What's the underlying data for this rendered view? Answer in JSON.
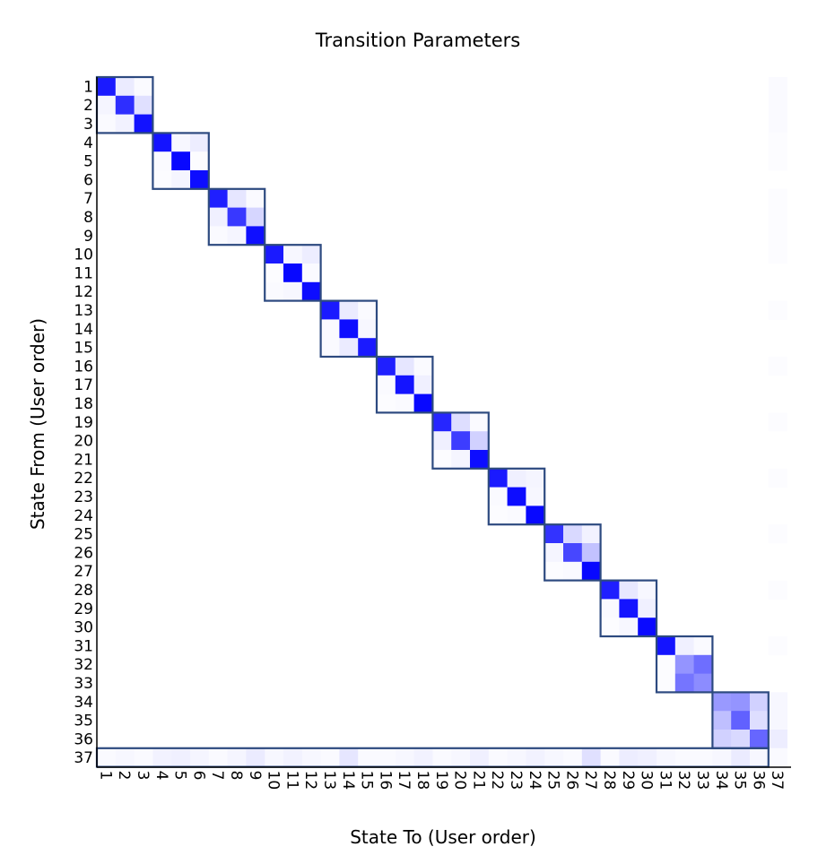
{
  "chart_data": {
    "type": "heatmap",
    "title": "Transition Parameters",
    "xlabel": "State To (User order)",
    "ylabel": "State From (User order)",
    "x_ticks": [
      "1",
      "2",
      "3",
      "4",
      "5",
      "6",
      "7",
      "8",
      "9",
      "10",
      "11",
      "12",
      "13",
      "14",
      "15",
      "16",
      "17",
      "18",
      "19",
      "20",
      "21",
      "22",
      "23",
      "24",
      "25",
      "26",
      "27",
      "28",
      "29",
      "30",
      "31",
      "32",
      "33",
      "34",
      "35",
      "36",
      "37"
    ],
    "y_ticks": [
      "1",
      "2",
      "3",
      "4",
      "5",
      "6",
      "7",
      "8",
      "9",
      "10",
      "11",
      "12",
      "13",
      "14",
      "15",
      "16",
      "17",
      "18",
      "19",
      "20",
      "21",
      "22",
      "23",
      "24",
      "25",
      "26",
      "27",
      "28",
      "29",
      "30",
      "31",
      "32",
      "33",
      "34",
      "35",
      "36",
      "37"
    ],
    "color_scale": {
      "low": "#ffffff",
      "high": "#0000ff"
    },
    "value_range": [
      0,
      1
    ],
    "blocks": [
      [
        1,
        3
      ],
      [
        4,
        6
      ],
      [
        7,
        9
      ],
      [
        10,
        12
      ],
      [
        13,
        15
      ],
      [
        16,
        18
      ],
      [
        19,
        21
      ],
      [
        22,
        24
      ],
      [
        25,
        27
      ],
      [
        28,
        30
      ],
      [
        31,
        33
      ],
      [
        34,
        36
      ],
      [
        1,
        36
      ]
    ],
    "block_outline_color": "#2d4a80",
    "cells": [
      [
        1,
        1,
        0.9
      ],
      [
        1,
        2,
        0.08
      ],
      [
        1,
        3,
        0.02
      ],
      [
        2,
        1,
        0.04
      ],
      [
        2,
        2,
        0.82
      ],
      [
        2,
        3,
        0.12
      ],
      [
        3,
        1,
        0.02
      ],
      [
        3,
        2,
        0.05
      ],
      [
        3,
        3,
        0.93
      ],
      [
        4,
        4,
        0.92
      ],
      [
        4,
        5,
        0.03
      ],
      [
        4,
        6,
        0.07
      ],
      [
        5,
        4,
        0.02
      ],
      [
        5,
        5,
        0.97
      ],
      [
        5,
        6,
        0.01
      ],
      [
        6,
        4,
        0.01
      ],
      [
        6,
        5,
        0.04
      ],
      [
        6,
        6,
        0.95
      ],
      [
        7,
        7,
        0.88
      ],
      [
        7,
        8,
        0.1
      ],
      [
        7,
        9,
        0.02
      ],
      [
        8,
        7,
        0.06
      ],
      [
        8,
        8,
        0.78
      ],
      [
        8,
        9,
        0.16
      ],
      [
        9,
        7,
        0.02
      ],
      [
        9,
        8,
        0.04
      ],
      [
        9,
        9,
        0.94
      ],
      [
        10,
        10,
        0.9
      ],
      [
        10,
        11,
        0.03
      ],
      [
        10,
        12,
        0.07
      ],
      [
        11,
        10,
        0.01
      ],
      [
        11,
        11,
        0.97
      ],
      [
        11,
        12,
        0.02
      ],
      [
        12,
        10,
        0.02
      ],
      [
        12,
        11,
        0.03
      ],
      [
        12,
        12,
        0.95
      ],
      [
        13,
        13,
        0.9
      ],
      [
        13,
        14,
        0.08
      ],
      [
        13,
        15,
        0.02
      ],
      [
        14,
        13,
        0.02
      ],
      [
        14,
        14,
        0.95
      ],
      [
        14,
        15,
        0.03
      ],
      [
        15,
        13,
        0.02
      ],
      [
        15,
        14,
        0.08
      ],
      [
        15,
        15,
        0.9
      ],
      [
        16,
        16,
        0.88
      ],
      [
        16,
        17,
        0.1
      ],
      [
        16,
        18,
        0.02
      ],
      [
        17,
        16,
        0.02
      ],
      [
        17,
        17,
        0.92
      ],
      [
        17,
        18,
        0.06
      ],
      [
        18,
        16,
        0.01
      ],
      [
        18,
        17,
        0.02
      ],
      [
        18,
        18,
        0.97
      ],
      [
        19,
        19,
        0.85
      ],
      [
        19,
        20,
        0.13
      ],
      [
        19,
        21,
        0.02
      ],
      [
        20,
        19,
        0.06
      ],
      [
        20,
        20,
        0.76
      ],
      [
        20,
        21,
        0.18
      ],
      [
        21,
        19,
        0.01
      ],
      [
        21,
        20,
        0.04
      ],
      [
        21,
        21,
        0.95
      ],
      [
        22,
        22,
        0.9
      ],
      [
        22,
        23,
        0.06
      ],
      [
        22,
        24,
        0.04
      ],
      [
        23,
        22,
        0.02
      ],
      [
        23,
        23,
        0.95
      ],
      [
        23,
        24,
        0.03
      ],
      [
        24,
        22,
        0.01
      ],
      [
        24,
        23,
        0.02
      ],
      [
        24,
        24,
        0.97
      ],
      [
        25,
        25,
        0.8
      ],
      [
        25,
        26,
        0.15
      ],
      [
        25,
        27,
        0.05
      ],
      [
        26,
        25,
        0.04
      ],
      [
        26,
        26,
        0.72
      ],
      [
        26,
        27,
        0.24
      ],
      [
        27,
        25,
        0.01
      ],
      [
        27,
        26,
        0.02
      ],
      [
        27,
        27,
        0.97
      ],
      [
        28,
        28,
        0.88
      ],
      [
        28,
        29,
        0.09
      ],
      [
        28,
        30,
        0.03
      ],
      [
        29,
        28,
        0.02
      ],
      [
        29,
        29,
        0.92
      ],
      [
        29,
        30,
        0.06
      ],
      [
        30,
        28,
        0.01
      ],
      [
        30,
        29,
        0.03
      ],
      [
        30,
        30,
        0.96
      ],
      [
        31,
        31,
        0.92
      ],
      [
        31,
        32,
        0.06
      ],
      [
        31,
        33,
        0.02
      ],
      [
        32,
        31,
        0.01
      ],
      [
        32,
        32,
        0.42
      ],
      [
        32,
        33,
        0.57
      ],
      [
        33,
        31,
        0.01
      ],
      [
        33,
        32,
        0.54
      ],
      [
        33,
        33,
        0.45
      ],
      [
        34,
        34,
        0.4
      ],
      [
        34,
        35,
        0.42
      ],
      [
        34,
        36,
        0.18
      ],
      [
        34,
        37,
        0.03
      ],
      [
        35,
        34,
        0.25
      ],
      [
        35,
        35,
        0.62
      ],
      [
        35,
        36,
        0.13
      ],
      [
        35,
        37,
        0.03
      ],
      [
        36,
        34,
        0.18
      ],
      [
        36,
        35,
        0.15
      ],
      [
        36,
        36,
        0.6
      ],
      [
        36,
        37,
        0.07
      ],
      [
        37,
        1,
        0.02
      ],
      [
        37,
        2,
        0.03
      ],
      [
        37,
        3,
        0.02
      ],
      [
        37,
        4,
        0.05
      ],
      [
        37,
        5,
        0.06
      ],
      [
        37,
        6,
        0.04
      ],
      [
        37,
        7,
        0.02
      ],
      [
        37,
        8,
        0.04
      ],
      [
        37,
        9,
        0.08
      ],
      [
        37,
        10,
        0.03
      ],
      [
        37,
        11,
        0.05
      ],
      [
        37,
        12,
        0.03
      ],
      [
        37,
        13,
        0.02
      ],
      [
        37,
        14,
        0.1
      ],
      [
        37,
        15,
        0.02
      ],
      [
        37,
        16,
        0.02
      ],
      [
        37,
        17,
        0.03
      ],
      [
        37,
        18,
        0.05
      ],
      [
        37,
        19,
        0.02
      ],
      [
        37,
        20,
        0.03
      ],
      [
        37,
        21,
        0.06
      ],
      [
        37,
        22,
        0.02
      ],
      [
        37,
        23,
        0.03
      ],
      [
        37,
        24,
        0.05
      ],
      [
        37,
        25,
        0.03
      ],
      [
        37,
        26,
        0.02
      ],
      [
        37,
        27,
        0.12
      ],
      [
        37,
        28,
        0.02
      ],
      [
        37,
        29,
        0.07
      ],
      [
        37,
        30,
        0.06
      ],
      [
        37,
        31,
        0.03
      ],
      [
        37,
        32,
        0.02
      ],
      [
        37,
        33,
        0.02
      ],
      [
        37,
        34,
        0.03
      ],
      [
        37,
        35,
        0.08
      ],
      [
        37,
        36,
        0.03
      ],
      [
        37,
        37,
        0.02
      ],
      [
        1,
        37,
        0.02
      ],
      [
        2,
        37,
        0.02
      ],
      [
        3,
        37,
        0.02
      ],
      [
        4,
        37,
        0.01
      ],
      [
        5,
        37,
        0.01
      ],
      [
        7,
        37,
        0.01
      ],
      [
        8,
        37,
        0.01
      ],
      [
        9,
        37,
        0.01
      ],
      [
        10,
        37,
        0.01
      ],
      [
        13,
        37,
        0.01
      ],
      [
        16,
        37,
        0.01
      ],
      [
        19,
        37,
        0.01
      ],
      [
        22,
        37,
        0.01
      ],
      [
        25,
        37,
        0.01
      ],
      [
        28,
        37,
        0.01
      ],
      [
        31,
        37,
        0.01
      ]
    ]
  }
}
